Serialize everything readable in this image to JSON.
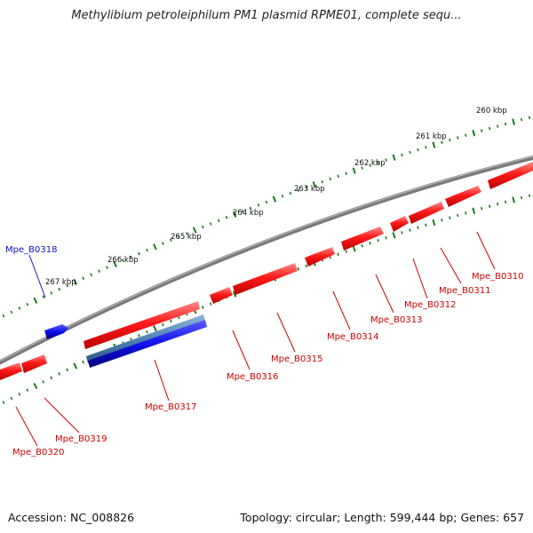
{
  "title": "Methylibium petroleiphilum PM1 plasmid RPME01, complete sequ...",
  "footer": {
    "accession_label": "Accession:",
    "accession": "NC_008826",
    "topology_label": "Topology:",
    "topology": "circular",
    "length_label": "Length:",
    "length": "599,444 bp",
    "genes_label": "Genes:",
    "genes": "657"
  },
  "colors": {
    "forward_gene": "#ff2020",
    "reverse_gene": "#ff2020",
    "highlight_blue": "#1010ee",
    "highlight_steel": "#4f84b8",
    "backbone": "#7a7a7a",
    "tick": "#1b7a1b",
    "label_red": "#cc0000",
    "label_blue": "#1010cc"
  },
  "scale_ticks": [
    "260 kbp",
    "261 kbp",
    "262 kbp",
    "263 kbp",
    "264 kbp",
    "265 kbp",
    "266 kbp",
    "267 kbp"
  ],
  "genes": [
    {
      "name": "Mpe_B0310",
      "strand": "reverse",
      "highlight": false
    },
    {
      "name": "Mpe_B0311",
      "strand": "reverse",
      "highlight": false
    },
    {
      "name": "Mpe_B0312",
      "strand": "reverse",
      "highlight": false
    },
    {
      "name": "Mpe_B0313",
      "strand": "reverse",
      "highlight": false
    },
    {
      "name": "Mpe_B0314",
      "strand": "reverse",
      "highlight": false
    },
    {
      "name": "Mpe_B0315",
      "strand": "reverse",
      "highlight": false
    },
    {
      "name": "Mpe_B0316",
      "strand": "reverse",
      "highlight": false
    },
    {
      "name": "Mpe_B0317",
      "strand": "forward",
      "highlight": true
    },
    {
      "name": "Mpe_B0318",
      "strand": "forward",
      "highlight": true
    },
    {
      "name": "Mpe_B0319",
      "strand": "reverse",
      "highlight": false
    },
    {
      "name": "Mpe_B0320",
      "strand": "reverse",
      "highlight": false
    }
  ]
}
